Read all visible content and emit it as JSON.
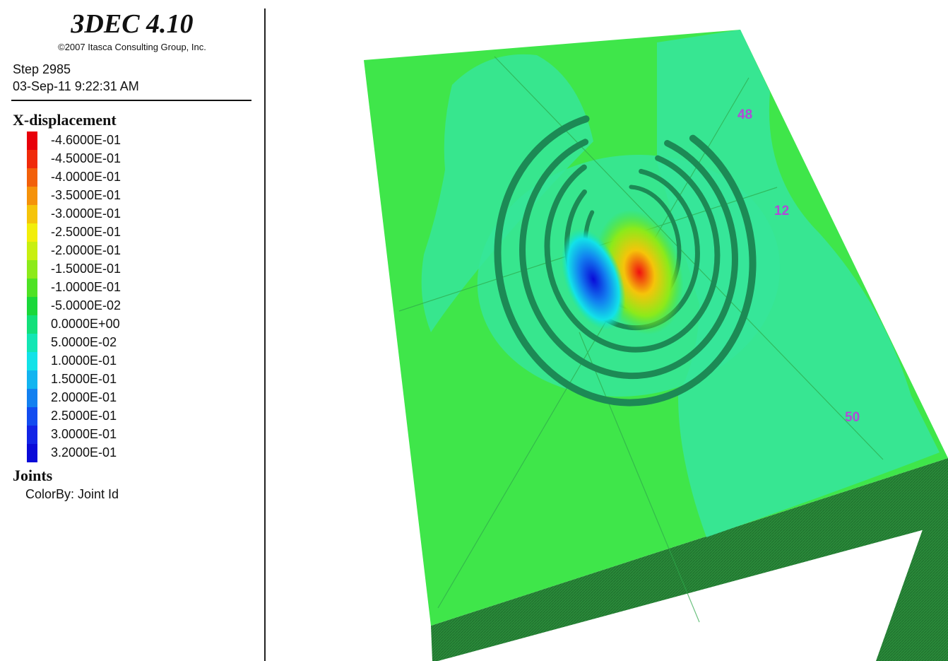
{
  "header": {
    "app_title": "3DEC 4.10",
    "copyright": "©2007 Itasca Consulting Group, Inc.",
    "step": "Step 2985",
    "datetime": "03-Sep-11 9:22:31 AM"
  },
  "legend": {
    "title": "X-displacement",
    "items": [
      {
        "label": "-4.6000E-01",
        "color": "#e8000a"
      },
      {
        "label": "-4.5000E-01",
        "color": "#f02a0a"
      },
      {
        "label": "-4.0000E-01",
        "color": "#f2600a"
      },
      {
        "label": "-3.5000E-01",
        "color": "#f5920a"
      },
      {
        "label": "-3.0000E-01",
        "color": "#f5c40a"
      },
      {
        "label": "-2.5000E-01",
        "color": "#f2ee0a"
      },
      {
        "label": "-2.0000E-01",
        "color": "#c8ef10"
      },
      {
        "label": "-1.5000E-01",
        "color": "#8cea1a"
      },
      {
        "label": "-1.0000E-01",
        "color": "#4ee224"
      },
      {
        "label": "-5.0000E-02",
        "color": "#1ad83a"
      },
      {
        "label": "0.0000E+00",
        "color": "#12e07a"
      },
      {
        "label": "5.0000E-02",
        "color": "#12e6b4"
      },
      {
        "label": "1.0000E-01",
        "color": "#12e2e8"
      },
      {
        "label": "1.5000E-01",
        "color": "#12b4f0"
      },
      {
        "label": "2.0000E-01",
        "color": "#1280f0"
      },
      {
        "label": "2.5000E-01",
        "color": "#124cf0"
      },
      {
        "label": "3.0000E-01",
        "color": "#1224e6"
      },
      {
        "label": "3.2000E-01",
        "color": "#0a0ad8"
      }
    ]
  },
  "joints": {
    "title": "Joints",
    "colorby": "ColorBy: Joint Id"
  },
  "model": {
    "joint_labels": [
      "48",
      "12",
      "50"
    ],
    "label_color": "#b04ad8"
  }
}
